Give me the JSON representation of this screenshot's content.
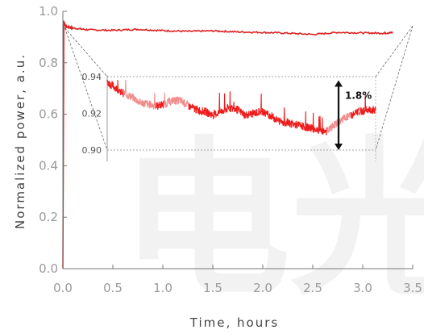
{
  "chart_data": {
    "type": "line",
    "xlabel": "Time, hours",
    "ylabel": "Normalized power, a.u.",
    "xlim": [
      0.0,
      3.5
    ],
    "ylim": [
      0.0,
      1.0
    ],
    "xticks": [
      "0.0",
      "0.5",
      "1.0",
      "1.5",
      "2.0",
      "2.5",
      "3.0",
      "3.5"
    ],
    "yticks": [
      "0.0",
      "0.2",
      "0.4",
      "0.6",
      "0.8",
      "1.0"
    ],
    "grid": false,
    "colors": {
      "main": "#dd2222",
      "inset": "#ee1c1c",
      "inset_light": "#f08c8c",
      "guide": "#888888"
    },
    "series": [
      {
        "x": [
          0.0,
          0.01,
          0.03,
          0.1,
          0.25,
          0.5,
          0.75,
          1.0,
          1.25,
          1.5,
          1.75,
          2.0,
          2.25,
          2.5,
          2.75,
          3.0,
          3.2,
          3.3
        ],
        "values": [
          0.0,
          0.96,
          0.94,
          0.935,
          0.928,
          0.926,
          0.93,
          0.925,
          0.922,
          0.924,
          0.92,
          0.918,
          0.915,
          0.91,
          0.918,
          0.916,
          0.915,
          0.917
        ]
      }
    ],
    "inset": {
      "yticks": [
        "0.94",
        "0.92",
        "0.90"
      ],
      "ylim": [
        0.9,
        0.94
      ],
      "xlim": [
        0.0,
        3.3
      ],
      "x": [
        0.0,
        0.1,
        0.2,
        0.3,
        0.4,
        0.5,
        0.6,
        0.7,
        0.8,
        0.9,
        1.0,
        1.1,
        1.2,
        1.3,
        1.4,
        1.5,
        1.6,
        1.7,
        1.8,
        1.9,
        2.0,
        2.1,
        2.2,
        2.3,
        2.4,
        2.5,
        2.6,
        2.7,
        2.8,
        2.9,
        3.0,
        3.1,
        3.2,
        3.3
      ],
      "values": [
        0.937,
        0.934,
        0.931,
        0.929,
        0.926,
        0.925,
        0.924,
        0.925,
        0.927,
        0.927,
        0.924,
        0.922,
        0.921,
        0.919,
        0.921,
        0.923,
        0.922,
        0.919,
        0.92,
        0.921,
        0.919,
        0.916,
        0.915,
        0.914,
        0.913,
        0.912,
        0.911,
        0.91,
        0.914,
        0.917,
        0.919,
        0.921,
        0.922,
        0.922
      ],
      "light_ranges": [
        [
          0.2,
          0.6
        ],
        [
          0.7,
          1.0
        ],
        [
          2.7,
          3.0
        ]
      ],
      "annotation": "1.8%"
    }
  },
  "watermark": "电光"
}
